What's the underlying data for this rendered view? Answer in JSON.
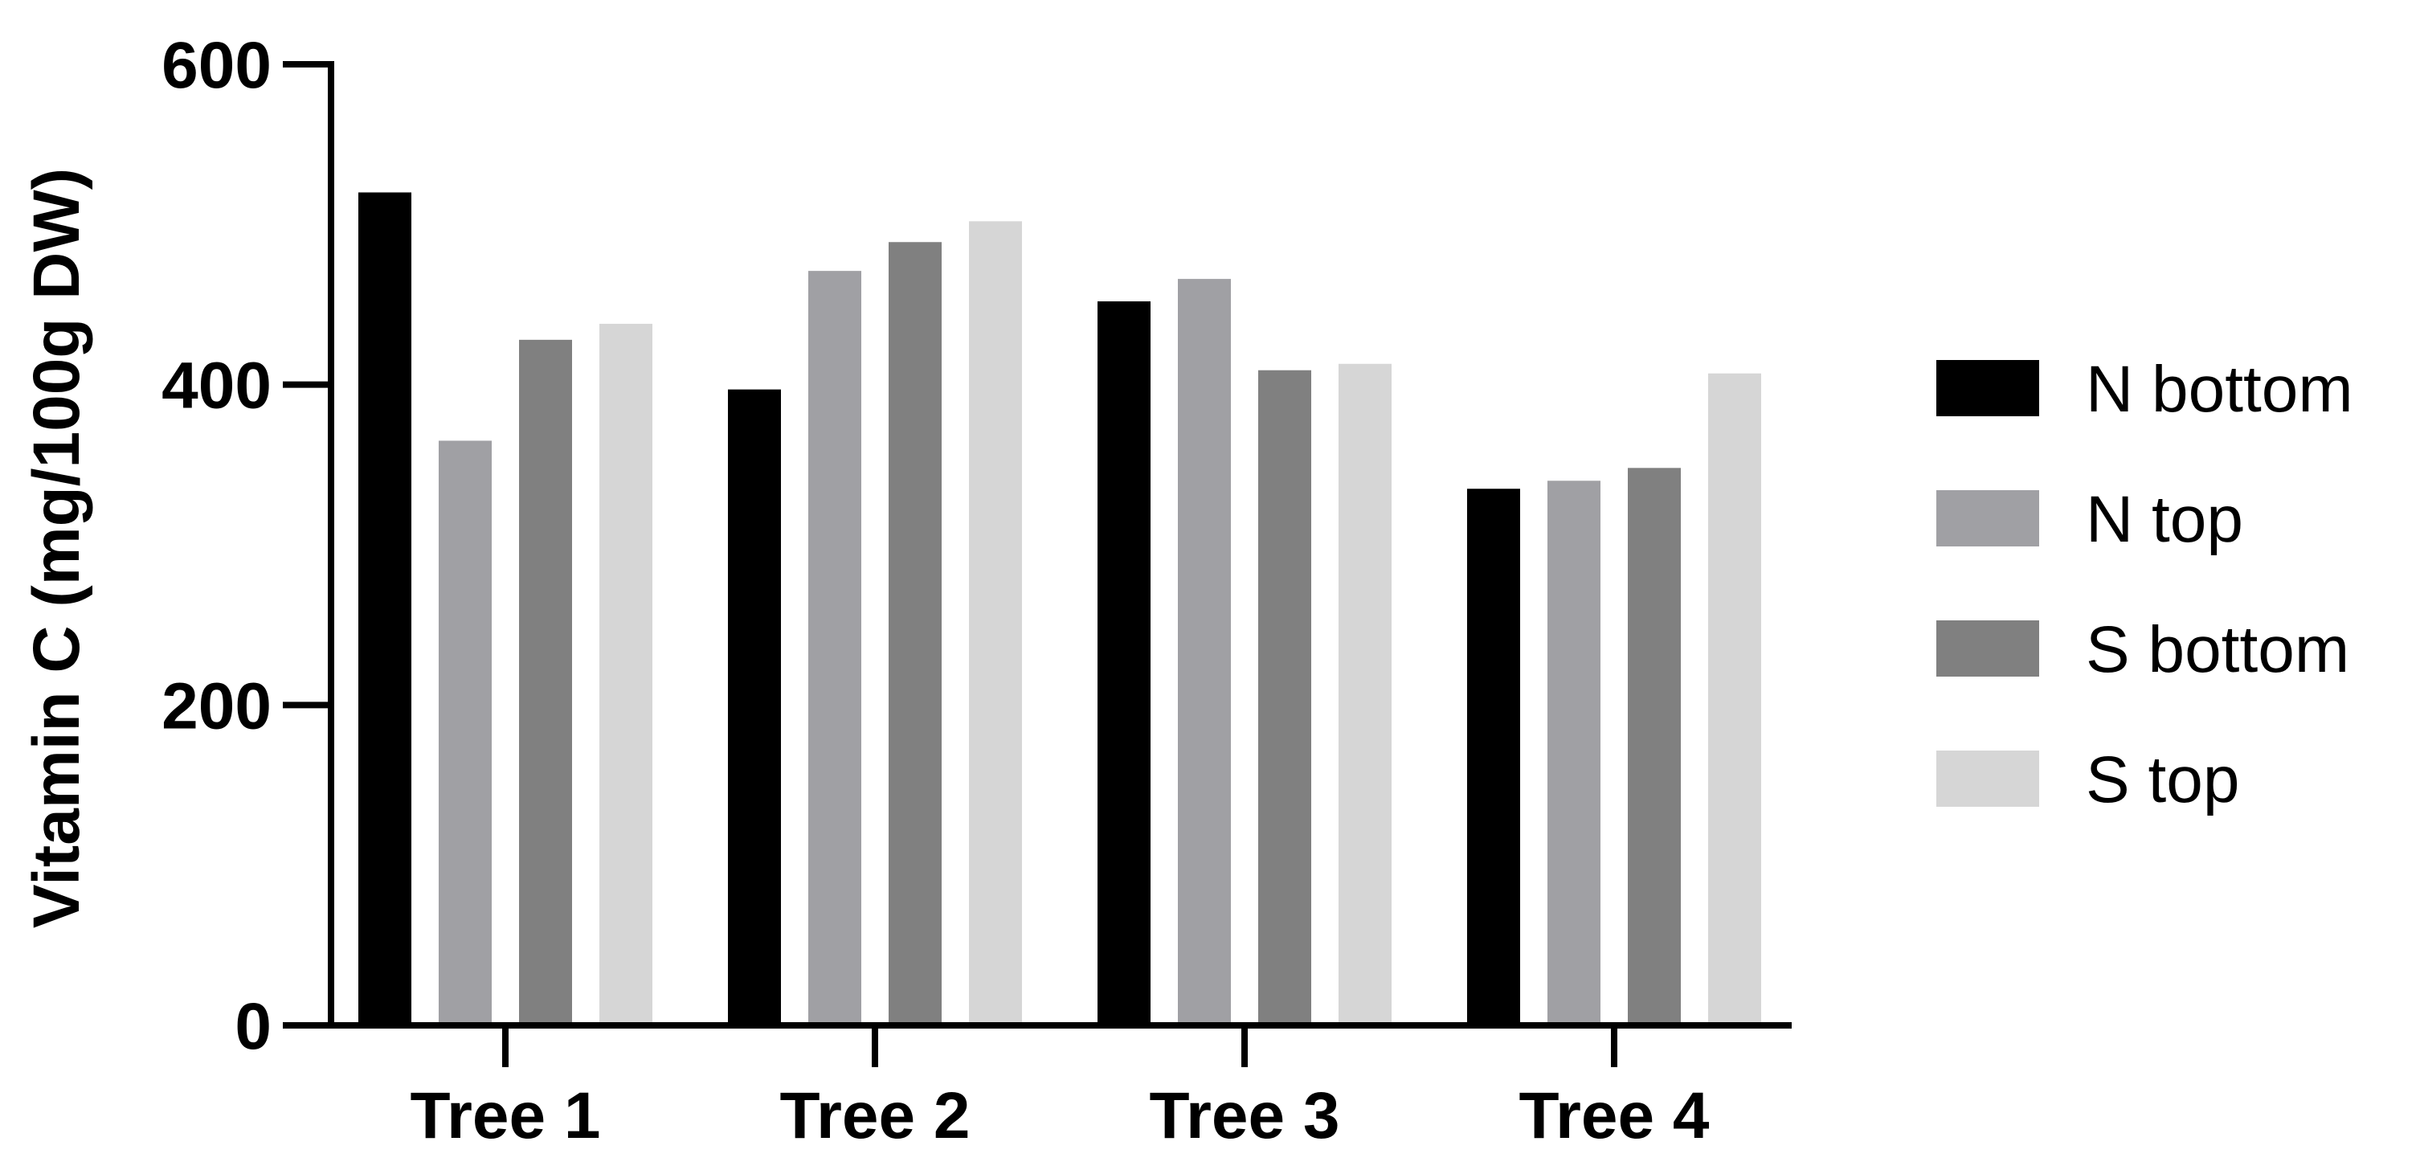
{
  "chart_data": {
    "type": "bar",
    "title": "",
    "xlabel": "",
    "ylabel": "Vitamin C (mg/100g DW)",
    "categories": [
      "Tree 1",
      "Tree 2",
      "Tree 3",
      "Tree 4"
    ],
    "ylim": [
      0,
      600
    ],
    "yticks": [
      0,
      200,
      400,
      600
    ],
    "grid": false,
    "legend_position": "right",
    "series": [
      {
        "name": "N bottom",
        "color": "#000000",
        "values": [
          520,
          397,
          452,
          335
        ]
      },
      {
        "name": "N top",
        "color": "#a0a0a4",
        "values": [
          365,
          471,
          466,
          340
        ]
      },
      {
        "name": "S bottom",
        "color": "#808080",
        "values": [
          428,
          489,
          409,
          348
        ]
      },
      {
        "name": "S top",
        "color": "#d6d6d6",
        "values": [
          438,
          502,
          413,
          407
        ]
      }
    ]
  }
}
